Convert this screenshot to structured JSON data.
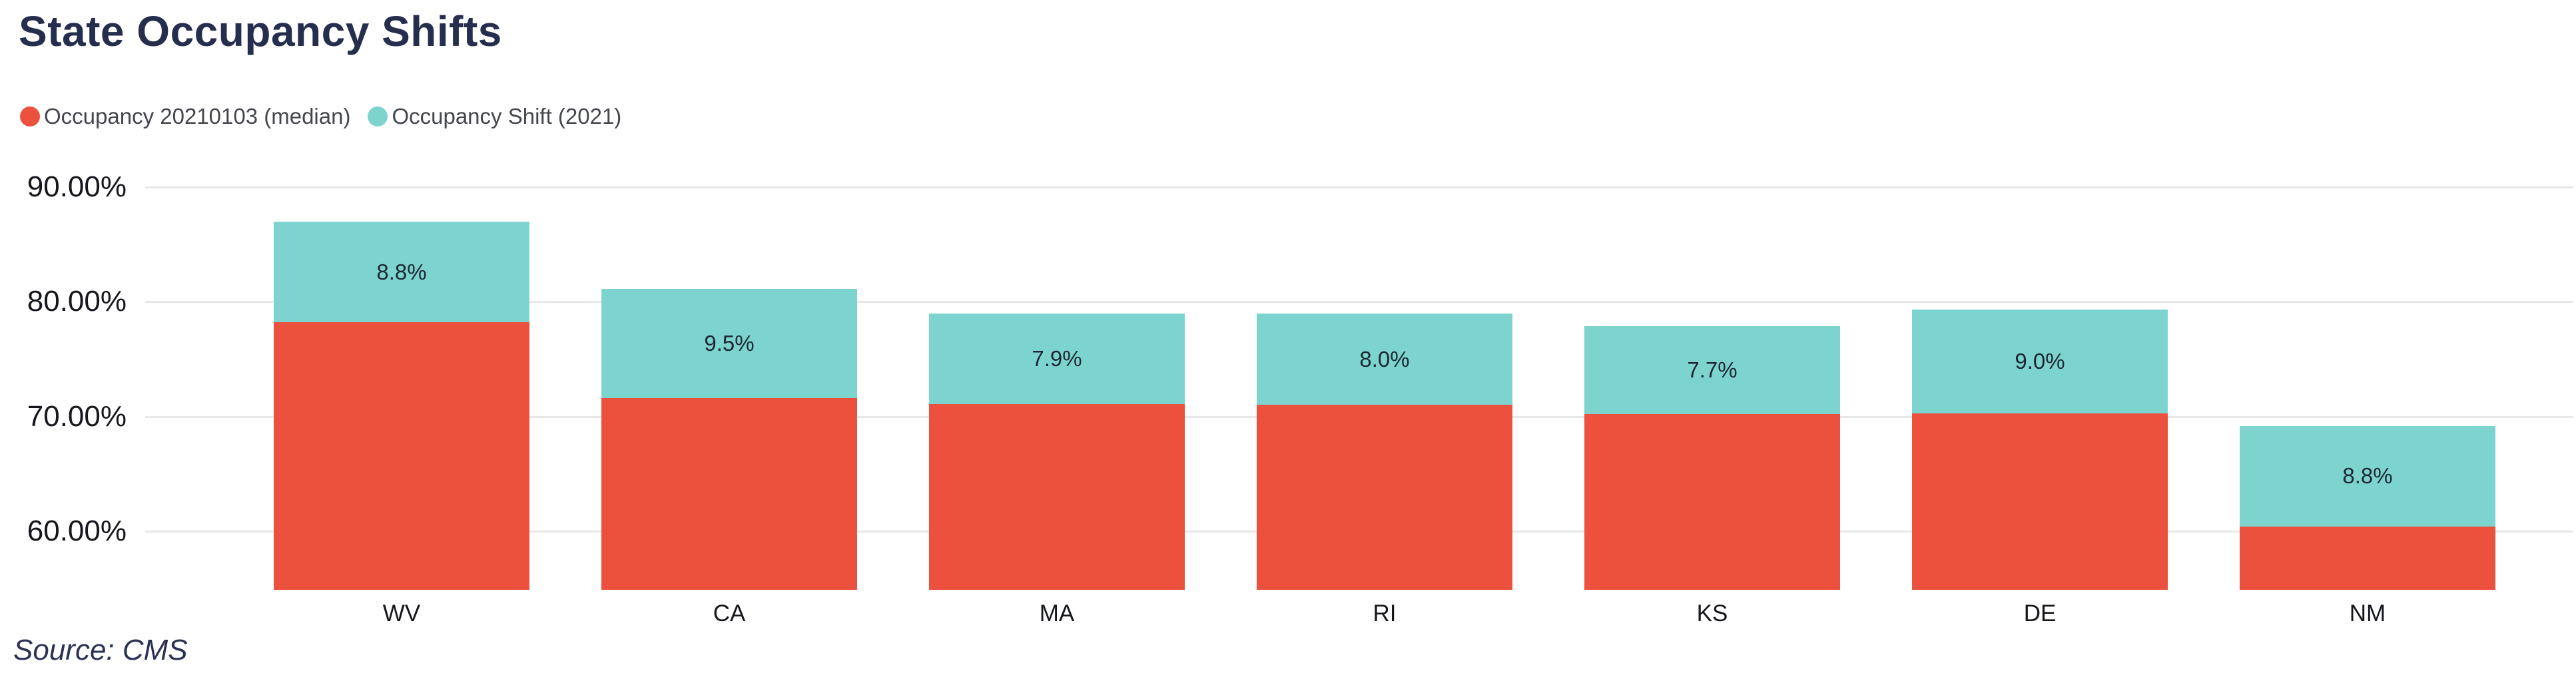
{
  "title": "State Occupancy Shifts",
  "source_note": "Source: CMS",
  "colors": {
    "title": "#262E4E",
    "source": "#2B3254",
    "occupancy_red": "#EC513D",
    "shift_teal": "#7DD4CF",
    "gridline": "#E8E8E8",
    "axis_text": "#15171D",
    "bar_label_text": "#1D2732",
    "legend_text": "#45474F",
    "background": "#FFFFFF"
  },
  "legend": [
    {
      "label": "Occupancy 20210103 (median)",
      "color": "#EC513D"
    },
    {
      "label": "Occupancy Shift (2021)",
      "color": "#7DD4CF"
    }
  ],
  "chart_data": {
    "type": "bar",
    "subtype": "stacked-vertical",
    "categories": [
      "WV",
      "CA",
      "MA",
      "RI",
      "KS",
      "DE",
      "NM"
    ],
    "series": [
      {
        "name": "Occupancy 20210103 (median)",
        "color": "#EC513D",
        "values": [
          78.2,
          71.6,
          71.1,
          71.0,
          70.2,
          70.3,
          60.4
        ]
      },
      {
        "name": "Occupancy Shift (2021)",
        "color": "#7DD4CF",
        "values": [
          8.8,
          9.5,
          7.9,
          8.0,
          7.7,
          9.0,
          8.8
        ]
      }
    ],
    "stack_totals": [
      87.0,
      81.1,
      79.0,
      79.0,
      77.9,
      79.3,
      69.2
    ],
    "bar_labels": [
      "8.8%",
      "9.5%",
      "7.9%",
      "8.0%",
      "7.7%",
      "9.0%",
      "8.8%"
    ],
    "bar_labels_series": "Occupancy Shift (2021)",
    "yticks": [
      90,
      80,
      70,
      60
    ],
    "ytick_labels": [
      "90.00%",
      "80.00%",
      "70.00%",
      "60.00%"
    ],
    "ylim": [
      54.9,
      90
    ],
    "grid": "horizontal",
    "legend_position": "top-left",
    "title": "State Occupancy Shifts",
    "xlabel": "",
    "ylabel": ""
  }
}
